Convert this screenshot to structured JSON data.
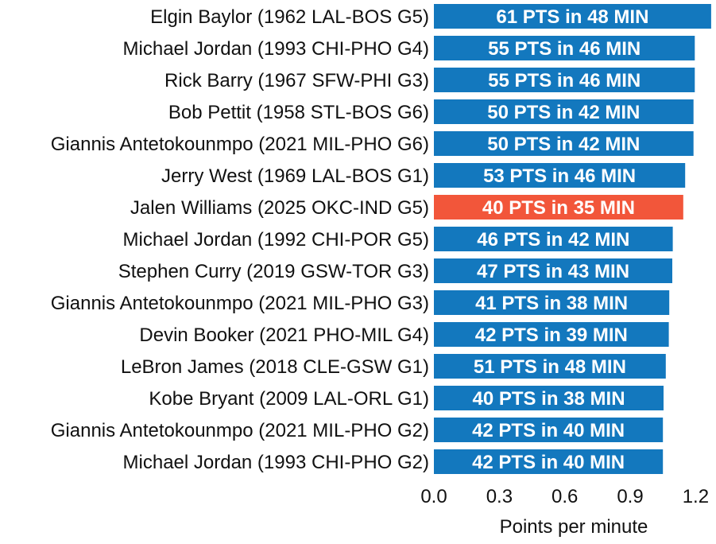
{
  "chart_data": {
    "type": "bar",
    "orientation": "horizontal",
    "title": "",
    "xlabel": "Points per minute",
    "ylabel": "",
    "xlim": [
      0,
      1.29
    ],
    "x_ticks": [
      "0.0",
      "0.3",
      "0.6",
      "0.9",
      "1.2"
    ],
    "x_tick_values": [
      0.0,
      0.3,
      0.6,
      0.9,
      1.2
    ],
    "grid": false,
    "legend": "none",
    "colors": {
      "default": "#1378BE",
      "highlight": "#F2563A"
    },
    "bars": [
      {
        "category": "Elgin Baylor (1962 LAL-BOS G5)",
        "value": 1.271,
        "label": "61 PTS in 48 MIN",
        "highlight": false
      },
      {
        "category": "Michael Jordan (1993 CHI-PHO G4)",
        "value": 1.196,
        "label": "55 PTS in 46 MIN",
        "highlight": false
      },
      {
        "category": "Rick Barry (1967 SFW-PHI G3)",
        "value": 1.196,
        "label": "55 PTS in 46 MIN",
        "highlight": false
      },
      {
        "category": "Bob Pettit (1958 STL-BOS G6)",
        "value": 1.19,
        "label": "50 PTS in 42 MIN",
        "highlight": false
      },
      {
        "category": "Giannis Antetokounmpo (2021 MIL-PHO G6)",
        "value": 1.19,
        "label": "50 PTS in 42 MIN",
        "highlight": false
      },
      {
        "category": "Jerry West (1969 LAL-BOS G1)",
        "value": 1.152,
        "label": "53 PTS in 46 MIN",
        "highlight": false
      },
      {
        "category": "Jalen Williams (2025 OKC-IND G5)",
        "value": 1.143,
        "label": "40 PTS in 35 MIN",
        "highlight": true
      },
      {
        "category": "Michael Jordan (1992 CHI-POR G5)",
        "value": 1.095,
        "label": "46 PTS in 42 MIN",
        "highlight": false
      },
      {
        "category": "Stephen Curry (2019 GSW-TOR G3)",
        "value": 1.093,
        "label": "47 PTS in 43 MIN",
        "highlight": false
      },
      {
        "category": "Giannis Antetokounmpo (2021 MIL-PHO G3)",
        "value": 1.079,
        "label": "41 PTS in 38 MIN",
        "highlight": false
      },
      {
        "category": "Devin Booker (2021 PHO-MIL G4)",
        "value": 1.077,
        "label": "42 PTS in 39 MIN",
        "highlight": false
      },
      {
        "category": "LeBron James (2018 CLE-GSW G1)",
        "value": 1.063,
        "label": "51 PTS in 48 MIN",
        "highlight": false
      },
      {
        "category": "Kobe Bryant (2009 LAL-ORL G1)",
        "value": 1.053,
        "label": "40 PTS in 38 MIN",
        "highlight": false
      },
      {
        "category": "Giannis Antetokounmpo (2021 MIL-PHO G2)",
        "value": 1.05,
        "label": "42 PTS in 40 MIN",
        "highlight": false
      },
      {
        "category": "Michael Jordan (1993 CHI-PHO G2)",
        "value": 1.05,
        "label": "42 PTS in 40 MIN",
        "highlight": false
      }
    ]
  }
}
